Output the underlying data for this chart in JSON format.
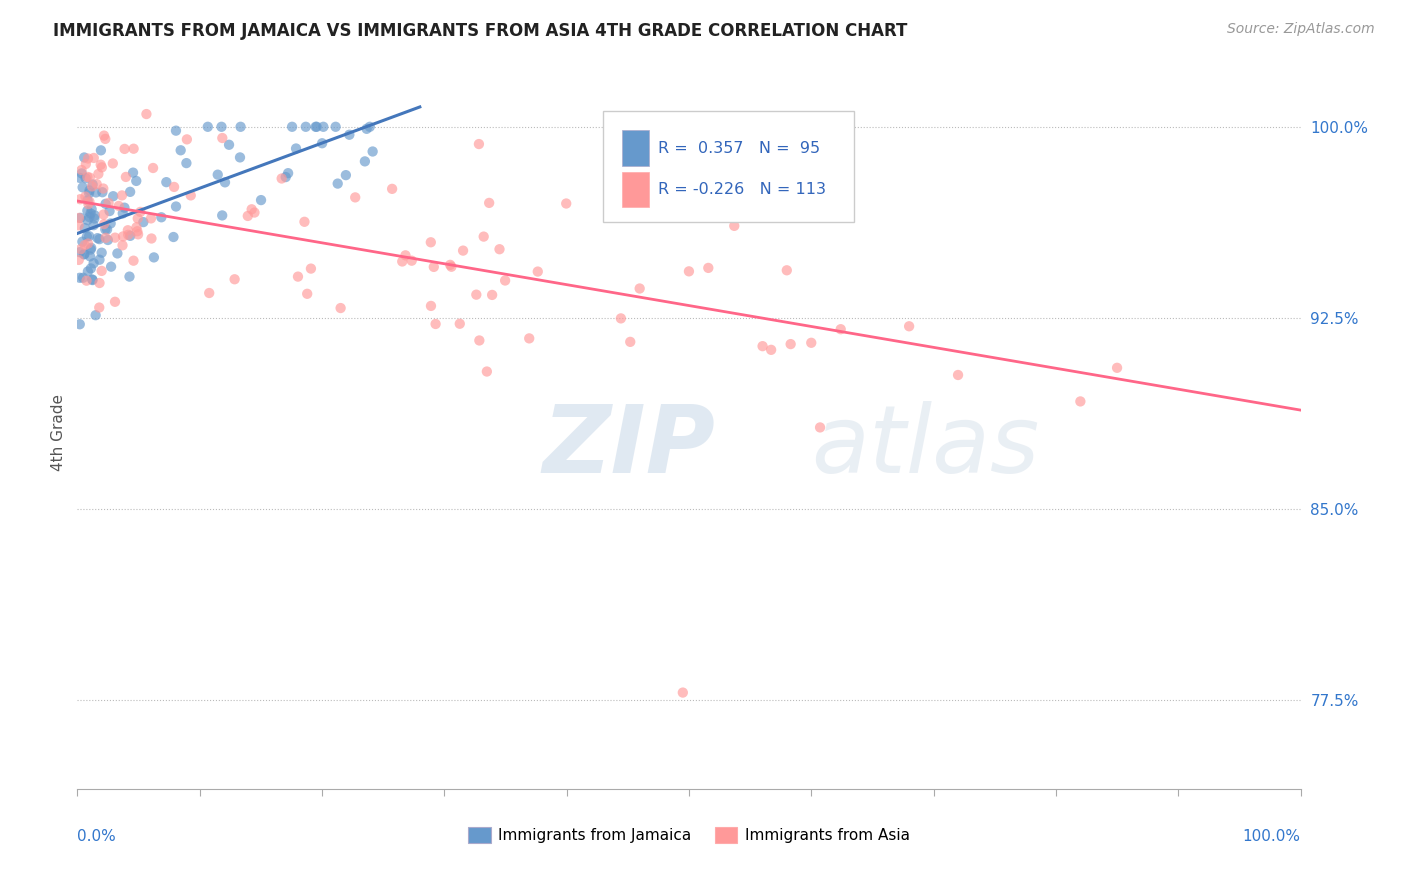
{
  "title": "IMMIGRANTS FROM JAMAICA VS IMMIGRANTS FROM ASIA 4TH GRADE CORRELATION CHART",
  "source": "Source: ZipAtlas.com",
  "ylabel": "4th Grade",
  "yaxis_labels": [
    "100.0%",
    "92.5%",
    "85.0%",
    "77.5%"
  ],
  "yaxis_values": [
    1.0,
    0.925,
    0.85,
    0.775
  ],
  "legend_label1": "Immigrants from Jamaica",
  "legend_label2": "Immigrants from Asia",
  "R1": 0.357,
  "N1": 95,
  "R2": -0.226,
  "N2": 113,
  "color_jamaica": "#6699CC",
  "color_asia": "#FF9999",
  "color_jamaica_trend": "#4477BB",
  "color_asia_trend": "#FF6688",
  "background_color": "#ffffff",
  "scatter_alpha": 0.65,
  "scatter_size": 55,
  "watermark_zip": "ZIP",
  "watermark_atlas": "atlas",
  "xlim": [
    0.0,
    1.0
  ],
  "ylim": [
    0.74,
    1.02
  ]
}
